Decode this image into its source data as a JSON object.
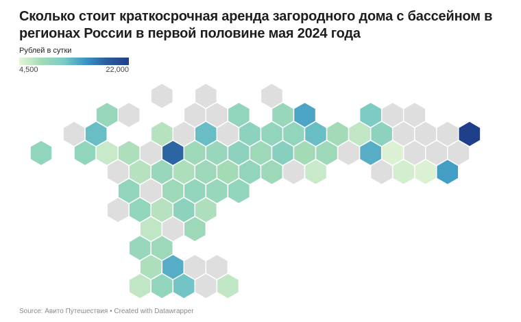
{
  "title": "Сколько стоит краткосрочная аренда загородного дома с бассейном в регионах России в первой половине мая 2024 года",
  "legend": {
    "label": "Рублей в сутки",
    "min_label": "4,500",
    "max_label": "22,000",
    "min": 4500,
    "max": 22000,
    "colors": [
      "#e6f5d8",
      "#a3dbb7",
      "#7cccc4",
      "#3a96c6",
      "#2a5d9e",
      "#1f3f8a"
    ],
    "no_data_color": "#dedede"
  },
  "source": "Source: Авито Путешествия • Created with Datawrapper",
  "chart_data": {
    "type": "hex-tile-map",
    "value_unit": "Рублей в сутки",
    "tiles": [
      {
        "col": 6,
        "row": 0,
        "value": null
      },
      {
        "col": 8,
        "row": 0,
        "value": null
      },
      {
        "col": 11,
        "row": 0,
        "value": null
      },
      {
        "col": 3,
        "row": 1,
        "value": 9000
      },
      {
        "col": 4,
        "row": 1,
        "value": null
      },
      {
        "col": 7,
        "row": 1,
        "value": null
      },
      {
        "col": 8,
        "row": 1,
        "value": null
      },
      {
        "col": 9,
        "row": 1,
        "value": 9500
      },
      {
        "col": 11,
        "row": 1,
        "value": 9000
      },
      {
        "col": 12,
        "row": 1,
        "value": 14000
      },
      {
        "col": 15,
        "row": 1,
        "value": 11500
      },
      {
        "col": 16,
        "row": 1,
        "value": null
      },
      {
        "col": 17,
        "row": 1,
        "value": null
      },
      {
        "col": 2,
        "row": 2,
        "value": null
      },
      {
        "col": 3,
        "row": 2,
        "value": 12500
      },
      {
        "col": 6,
        "row": 2,
        "value": 7000
      },
      {
        "col": 7,
        "row": 2,
        "value": null
      },
      {
        "col": 8,
        "row": 2,
        "value": 12500
      },
      {
        "col": 9,
        "row": 2,
        "value": null
      },
      {
        "col": 10,
        "row": 2,
        "value": 10000
      },
      {
        "col": 11,
        "row": 2,
        "value": 9500
      },
      {
        "col": 12,
        "row": 2,
        "value": 9500
      },
      {
        "col": 13,
        "row": 2,
        "value": 12500
      },
      {
        "col": 14,
        "row": 2,
        "value": 8000
      },
      {
        "col": 15,
        "row": 2,
        "value": 6500
      },
      {
        "col": 16,
        "row": 2,
        "value": 10000
      },
      {
        "col": 17,
        "row": 2,
        "value": null
      },
      {
        "col": 18,
        "row": 2,
        "value": null
      },
      {
        "col": 19,
        "row": 2,
        "value": null
      },
      {
        "col": 20,
        "row": 2,
        "value": 22000
      },
      {
        "col": 0,
        "row": 3,
        "value": 9500
      },
      {
        "col": 2,
        "row": 3,
        "value": 9500
      },
      {
        "col": 3,
        "row": 3,
        "value": 6000
      },
      {
        "col": 4,
        "row": 3,
        "value": 7500
      },
      {
        "col": 5,
        "row": 3,
        "value": null
      },
      {
        "col": 6,
        "row": 3,
        "value": 18000
      },
      {
        "col": 7,
        "row": 3,
        "value": 8500
      },
      {
        "col": 8,
        "row": 3,
        "value": 9000
      },
      {
        "col": 9,
        "row": 3,
        "value": 10000
      },
      {
        "col": 10,
        "row": 3,
        "value": 8500
      },
      {
        "col": 11,
        "row": 3,
        "value": 10500
      },
      {
        "col": 12,
        "row": 3,
        "value": 8000
      },
      {
        "col": 13,
        "row": 3,
        "value": 8500
      },
      {
        "col": 14,
        "row": 3,
        "value": null
      },
      {
        "col": 15,
        "row": 3,
        "value": 13500
      },
      {
        "col": 16,
        "row": 3,
        "value": 5000
      },
      {
        "col": 17,
        "row": 3,
        "value": null
      },
      {
        "col": 18,
        "row": 3,
        "value": null
      },
      {
        "col": 19,
        "row": 3,
        "value": null
      },
      {
        "col": 4,
        "row": 4,
        "value": null
      },
      {
        "col": 5,
        "row": 4,
        "value": 7000
      },
      {
        "col": 6,
        "row": 4,
        "value": 9000
      },
      {
        "col": 7,
        "row": 4,
        "value": 7500
      },
      {
        "col": 8,
        "row": 4,
        "value": 8500
      },
      {
        "col": 9,
        "row": 4,
        "value": 8000
      },
      {
        "col": 10,
        "row": 4,
        "value": 9500
      },
      {
        "col": 11,
        "row": 4,
        "value": 8500
      },
      {
        "col": 12,
        "row": 4,
        "value": null
      },
      {
        "col": 13,
        "row": 4,
        "value": 6000
      },
      {
        "col": 16,
        "row": 4,
        "value": null
      },
      {
        "col": 17,
        "row": 4,
        "value": 5500
      },
      {
        "col": 18,
        "row": 4,
        "value": 5000
      },
      {
        "col": 19,
        "row": 4,
        "value": 14500
      },
      {
        "col": 4,
        "row": 5,
        "value": 9500
      },
      {
        "col": 5,
        "row": 5,
        "value": null
      },
      {
        "col": 6,
        "row": 5,
        "value": 8500
      },
      {
        "col": 7,
        "row": 5,
        "value": 9500
      },
      {
        "col": 8,
        "row": 5,
        "value": 9000
      },
      {
        "col": 9,
        "row": 5,
        "value": 9500
      },
      {
        "col": 4,
        "row": 6,
        "value": null
      },
      {
        "col": 5,
        "row": 6,
        "value": 9500
      },
      {
        "col": 6,
        "row": 6,
        "value": 7000
      },
      {
        "col": 7,
        "row": 6,
        "value": 10000
      },
      {
        "col": 8,
        "row": 6,
        "value": 7500
      },
      {
        "col": 5,
        "row": 7,
        "value": 6500
      },
      {
        "col": 6,
        "row": 7,
        "value": null
      },
      {
        "col": 7,
        "row": 7,
        "value": 8500
      },
      {
        "col": 5,
        "row": 8,
        "value": 9000
      },
      {
        "col": 6,
        "row": 8,
        "value": 8500
      },
      {
        "col": 5,
        "row": 9,
        "value": 7500
      },
      {
        "col": 6,
        "row": 9,
        "value": 13500
      },
      {
        "col": 7,
        "row": 9,
        "value": null
      },
      {
        "col": 8,
        "row": 9,
        "value": null
      },
      {
        "col": 5,
        "row": 10,
        "value": 6500
      },
      {
        "col": 6,
        "row": 10,
        "value": 9500
      },
      {
        "col": 7,
        "row": 10,
        "value": 12000
      },
      {
        "col": 8,
        "row": 10,
        "value": null
      },
      {
        "col": 9,
        "row": 10,
        "value": 6500
      }
    ]
  }
}
